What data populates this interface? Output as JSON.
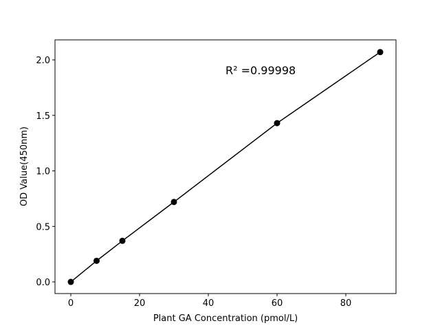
{
  "chart_data": {
    "type": "line",
    "title": "",
    "xlabel": "Plant GA Concentration (pmol/L)",
    "ylabel": "OD Value(450nm)",
    "xlim": [
      -4.6,
      94.6
    ],
    "ylim": [
      -0.105,
      2.18
    ],
    "x_ticks": [
      0,
      20,
      40,
      60,
      80
    ],
    "x_tick_labels": [
      "0",
      "20",
      "40",
      "60",
      "80"
    ],
    "y_ticks": [
      0.0,
      0.5,
      1.0,
      1.5,
      2.0
    ],
    "y_tick_labels": [
      "0.0",
      "0.5",
      "1.0",
      "1.5",
      "2.0"
    ],
    "grid": false,
    "series": [
      {
        "x": [
          0,
          7.5,
          15,
          30,
          60,
          90
        ],
        "y": [
          0.0,
          0.19,
          0.37,
          0.72,
          1.43,
          2.07
        ],
        "color": "#000000",
        "marker": "circle"
      }
    ],
    "annotation": "R² =0.99998"
  }
}
